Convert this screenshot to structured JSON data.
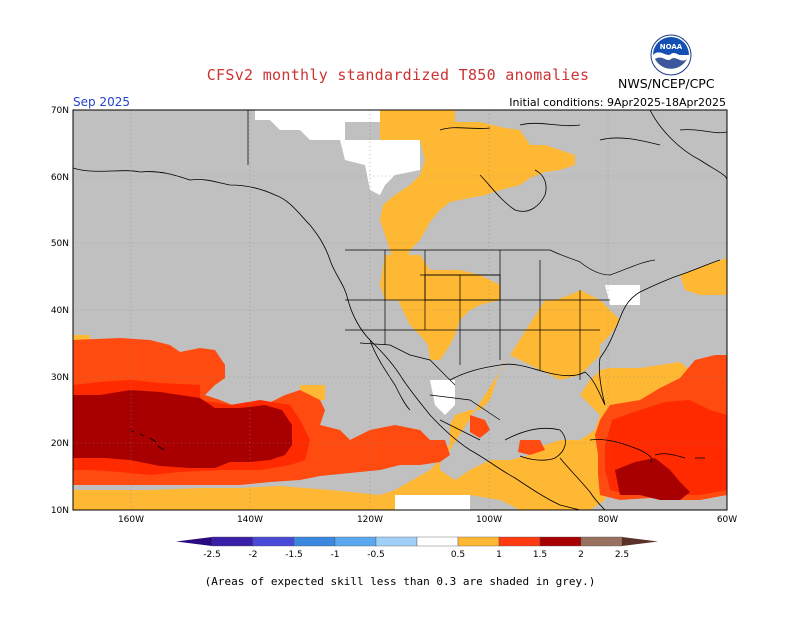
{
  "title": "CFSv2 monthly standardized T850 anomalies",
  "agency": "NWS/NCEP/CPC",
  "valid_month": "Sep 2025",
  "initial_conditions": "Initial conditions: 9Apr2025-18Apr2025",
  "footnote": "(Areas of expected skill less than 0.3 are shaded in grey.)",
  "logo_text": "NOAA",
  "colors": {
    "title": "#cc3333",
    "valid": "#2244cc",
    "skill_grey": "#c0c0c0",
    "white": "#ffffff",
    "bin_0.5_1": "#ffb833",
    "bin_1_1.5": "#ff5010",
    "bin_1.5_2": "#ff2a00",
    "bin_2_2.5": "#a80000",
    "neg_2.5": "#3a1fa8",
    "neg_2": "#4a4ad8",
    "neg_1.5": "#3a88e0",
    "neg_1": "#5aa8f0",
    "neg_0.5": "#a0d0f8",
    "pos_2.5": "#9a7060",
    "pos_3": "#5a3028"
  },
  "lat_labels": [
    "70N",
    "60N",
    "50N",
    "40N",
    "30N",
    "20N",
    "10N"
  ],
  "lon_labels": [
    "160W",
    "140W",
    "120W",
    "100W",
    "80W",
    "60W"
  ],
  "colorbar": {
    "labels": [
      "-2.5",
      "-2",
      "-1.5",
      "-1",
      "-0.5",
      "0.5",
      "1",
      "1.5",
      "2",
      "2.5"
    ],
    "bins": [
      "#3a1fa8",
      "#4a4ad8",
      "#3a88e0",
      "#5aa8f0",
      "#a0d0f8",
      "#ffffff",
      "#ffb833",
      "#ff3a10",
      "#a80000",
      "#9a7060"
    ],
    "left_arrow": "#2a0a80",
    "right_arrow": "#5a3028"
  }
}
